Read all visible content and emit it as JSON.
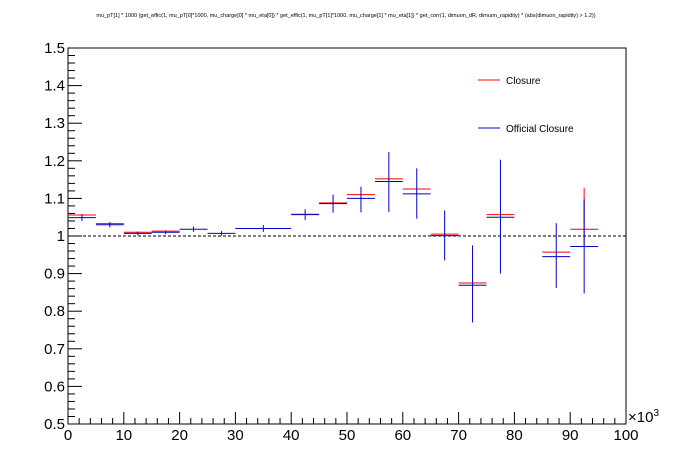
{
  "chart_data": {
    "type": "scatter",
    "title": "mu_pT[1] * 1000 (get_effic(1, mu_pT[0]*1000, mu_charge[0] * mu_eta[0]) * get_effic(1, mu_pT[1]*1000, mu_charge[1] * mu_eta[1]) * get_corr(1, dimuon_dR, dimuon_rapidity) * (abs(dimuon_rapidity) > 1.2))",
    "xlabel": "",
    "ylabel": "",
    "x_exponent_label": "×10",
    "x_exponent_power": "3",
    "xlim": [
      0,
      100
    ],
    "ylim": [
      0.5,
      1.5
    ],
    "reference_line": 1.0,
    "legend_position": "top-right",
    "x_ticks": [
      "0",
      "10",
      "20",
      "30",
      "40",
      "50",
      "60",
      "70",
      "80",
      "90",
      "100"
    ],
    "y_ticks": [
      "0.5",
      "0.6",
      "0.7",
      "0.8",
      "0.9",
      "1",
      "1.1",
      "1.2",
      "1.3",
      "1.4",
      "1.5"
    ],
    "series": [
      {
        "name": "Closure",
        "color": "#ff0000",
        "points": [
          {
            "x0": 0,
            "x1": 5,
            "y": 1.056
          },
          {
            "x0": 5,
            "x1": 10,
            "y": 1.033
          },
          {
            "x0": 10,
            "x1": 15,
            "y": 1.01
          },
          {
            "x0": 15,
            "x1": 20,
            "y": 1.013
          },
          {
            "x0": 40,
            "x1": 45,
            "y": 1.058
          },
          {
            "x0": 45,
            "x1": 50,
            "y": 1.088
          },
          {
            "x0": 50,
            "x1": 55,
            "y": 1.11
          },
          {
            "x0": 55,
            "x1": 60,
            "y": 1.152
          },
          {
            "x0": 60,
            "x1": 65,
            "y": 1.125
          },
          {
            "x0": 65,
            "x1": 70,
            "y": 1.005
          },
          {
            "x0": 70,
            "x1": 75,
            "y": 0.875
          },
          {
            "x0": 75,
            "x1": 80,
            "y": 1.057
          },
          {
            "x0": 85,
            "x1": 90,
            "y": 0.957
          },
          {
            "x0": 90,
            "x1": 95,
            "y": 1.018,
            "ylow": 0.97,
            "yhigh": 1.128
          }
        ]
      },
      {
        "name": "Official Closure",
        "color": "#0000cc",
        "points": [
          {
            "x0": 0,
            "x1": 5,
            "y": 1.049,
            "ylow": 1.04,
            "yhigh": 1.058
          },
          {
            "x0": 5,
            "x1": 10,
            "y": 1.03,
            "ylow": 1.023,
            "yhigh": 1.037
          },
          {
            "x0": 10,
            "x1": 15,
            "y": 1.007,
            "ylow": 1.002,
            "yhigh": 1.012
          },
          {
            "x0": 15,
            "x1": 20,
            "y": 1.01,
            "ylow": 1.005,
            "yhigh": 1.015
          },
          {
            "x0": 20,
            "x1": 25,
            "y": 1.018,
            "ylow": 1.011,
            "yhigh": 1.025
          },
          {
            "x0": 25,
            "x1": 30,
            "y": 1.007,
            "ylow": 1.001,
            "yhigh": 1.013
          },
          {
            "x0": 30,
            "x1": 40,
            "y": 1.02,
            "ylow": 1.011,
            "yhigh": 1.029
          },
          {
            "x0": 40,
            "x1": 45,
            "y": 1.057,
            "ylow": 1.043,
            "yhigh": 1.071
          },
          {
            "x0": 45,
            "x1": 50,
            "y": 1.086,
            "ylow": 1.062,
            "yhigh": 1.11
          },
          {
            "x0": 50,
            "x1": 55,
            "y": 1.1,
            "ylow": 1.063,
            "yhigh": 1.131
          },
          {
            "x0": 55,
            "x1": 60,
            "y": 1.145,
            "ylow": 1.064,
            "yhigh": 1.223
          },
          {
            "x0": 60,
            "x1": 65,
            "y": 1.112,
            "ylow": 1.046,
            "yhigh": 1.18
          },
          {
            "x0": 65,
            "x1": 70,
            "y": 1.001,
            "ylow": 0.935,
            "yhigh": 1.068
          },
          {
            "x0": 70,
            "x1": 75,
            "y": 0.869,
            "ylow": 0.77,
            "yhigh": 0.975
          },
          {
            "x0": 75,
            "x1": 80,
            "y": 1.05,
            "ylow": 0.9,
            "yhigh": 1.203
          },
          {
            "x0": 85,
            "x1": 90,
            "y": 0.945,
            "ylow": 0.862,
            "yhigh": 1.034
          },
          {
            "x0": 90,
            "x1": 95,
            "y": 0.972,
            "ylow": 0.847,
            "yhigh": 1.098
          }
        ]
      }
    ]
  }
}
